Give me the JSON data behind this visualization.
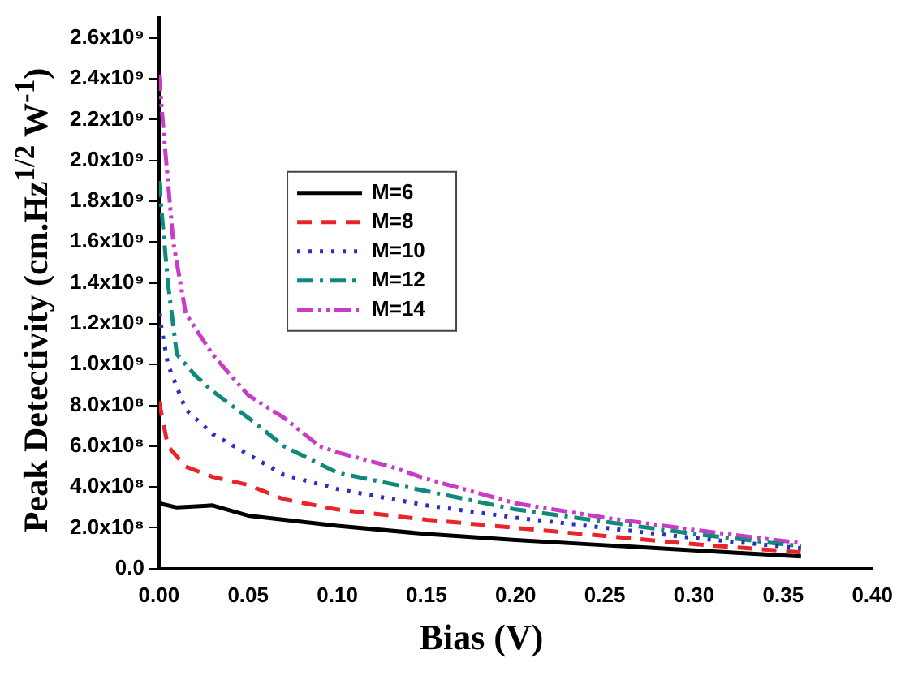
{
  "chart_data": {
    "type": "line",
    "xlabel": "Bias (V)",
    "ylabel": "Peak Detectivity (cm.Hz$^{1/2}$ W$^{-1}$)",
    "xlim": [
      0,
      0.4
    ],
    "xticks": [
      {
        "value": 0,
        "label": "0.00"
      },
      {
        "value": 0.05,
        "label": "0.05"
      },
      {
        "value": 0.1,
        "label": "0.10"
      },
      {
        "value": 0.15,
        "label": "0.15"
      },
      {
        "value": 0.2,
        "label": "0.20"
      },
      {
        "value": 0.25,
        "label": "0.25"
      },
      {
        "value": 0.3,
        "label": "0.30"
      },
      {
        "value": 0.35,
        "label": "0.35"
      },
      {
        "value": 0.4,
        "label": "0.40"
      }
    ],
    "ylim": [
      0,
      2700000000
    ],
    "yticks": [
      {
        "value": 0,
        "label": "0.0"
      },
      {
        "value": 200000000,
        "label": "2.0x10⁸"
      },
      {
        "value": 400000000,
        "label": "4.0x10⁸"
      },
      {
        "value": 600000000,
        "label": "6.0x10⁸"
      },
      {
        "value": 800000000,
        "label": "8.0x10⁸"
      },
      {
        "value": 1000000000,
        "label": "1.0x10⁹"
      },
      {
        "value": 1200000000,
        "label": "1.2x10⁹"
      },
      {
        "value": 1400000000,
        "label": "1.4x10⁹"
      },
      {
        "value": 1600000000,
        "label": "1.6x10⁹"
      },
      {
        "value": 1800000000,
        "label": "1.8x10⁹"
      },
      {
        "value": 2000000000,
        "label": "2.0x10⁹"
      },
      {
        "value": 2200000000,
        "label": "2.2x10⁹"
      },
      {
        "value": 2400000000,
        "label": "2.4x10⁹"
      },
      {
        "value": 2600000000,
        "label": "2.6x10⁹"
      }
    ],
    "grid": false,
    "legend": "top left",
    "marker": "none",
    "series": [
      {
        "name": "M=6",
        "color": "#000000",
        "line_style": "solid",
        "x": [
          0,
          0.01,
          0.03,
          0.05,
          0.1,
          0.15,
          0.2,
          0.25,
          0.3,
          0.36
        ],
        "values": [
          320000000,
          300000000,
          310000000,
          260000000,
          210000000,
          170000000,
          140000000,
          115000000,
          90000000,
          60000000
        ]
      },
      {
        "name": "M=8",
        "color": "#e8262a",
        "line_style": "dashed",
        "x": [
          0,
          0.005,
          0.015,
          0.03,
          0.05,
          0.07,
          0.1,
          0.15,
          0.2,
          0.25,
          0.3,
          0.36
        ],
        "values": [
          820000000,
          600000000,
          500000000,
          450000000,
          410000000,
          340000000,
          290000000,
          240000000,
          200000000,
          160000000,
          120000000,
          80000000
        ]
      },
      {
        "name": "M=10",
        "color": "#2b2fc0",
        "line_style": "dotted",
        "x": [
          0,
          0.005,
          0.015,
          0.03,
          0.05,
          0.07,
          0.1,
          0.15,
          0.2,
          0.25,
          0.3,
          0.36
        ],
        "values": [
          1250000000,
          1000000000,
          780000000,
          660000000,
          560000000,
          460000000,
          390000000,
          310000000,
          250000000,
          200000000,
          150000000,
          100000000
        ]
      },
      {
        "name": "M=12",
        "color": "#0f8a7a",
        "line_style": "dashdot",
        "x": [
          0,
          0.005,
          0.01,
          0.02,
          0.03,
          0.05,
          0.07,
          0.1,
          0.15,
          0.2,
          0.25,
          0.3,
          0.36
        ],
        "values": [
          1900000000,
          1400000000,
          1050000000,
          950000000,
          870000000,
          740000000,
          600000000,
          470000000,
          380000000,
          290000000,
          230000000,
          170000000,
          110000000
        ]
      },
      {
        "name": "M=14",
        "color": "#c83cc8",
        "line_style": "dashdotdot",
        "x": [
          0,
          0.003,
          0.008,
          0.015,
          0.03,
          0.05,
          0.07,
          0.09,
          0.1,
          0.13,
          0.15,
          0.2,
          0.25,
          0.3,
          0.36
        ],
        "values": [
          2420000000,
          2100000000,
          1600000000,
          1250000000,
          1050000000,
          850000000,
          740000000,
          600000000,
          570000000,
          500000000,
          440000000,
          320000000,
          250000000,
          190000000,
          125000000
        ]
      }
    ]
  }
}
